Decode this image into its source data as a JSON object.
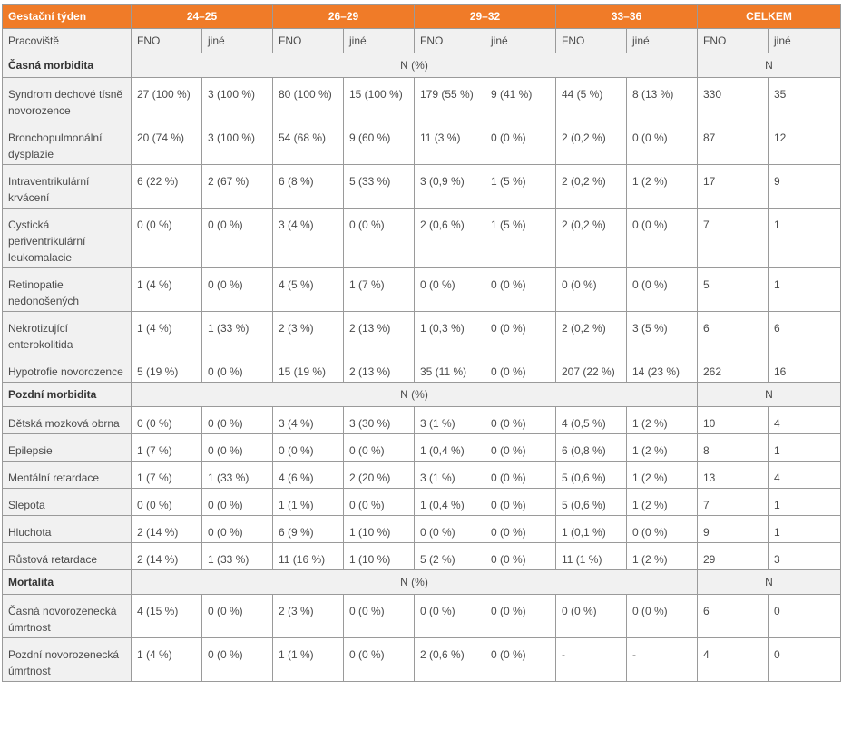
{
  "header": {
    "first": "Gestační týden",
    "groups": [
      "24–25",
      "26–29",
      "29–32",
      "33–36",
      "CELKEM"
    ]
  },
  "subheader": {
    "label": "Pracoviště",
    "cols": [
      "FNO",
      "jiné",
      "FNO",
      "jiné",
      "FNO",
      "jiné",
      "FNO",
      "jiné",
      "FNO",
      "jiné"
    ]
  },
  "sections": [
    {
      "title": "Časná morbidita",
      "unit_left": "N (%)",
      "unit_right": "N",
      "rows": [
        {
          "label": "Syndrom dechové tísně novorozence",
          "cells": [
            "27 (100 %)",
            "3 (100 %)",
            "80 (100 %)",
            "15 (100 %)",
            "179 (55 %)",
            "9 (41 %)",
            "44 (5 %)",
            "8 (13 %)",
            "330",
            "35"
          ]
        },
        {
          "label": "Bronchopulmonální dysplazie",
          "cells": [
            "20 (74 %)",
            "3 (100 %)",
            "54 (68 %)",
            "9 (60 %)",
            "11 (3 %)",
            "0 (0 %)",
            "2 (0,2 %)",
            "0 (0 %)",
            "87",
            "12"
          ]
        },
        {
          "label": "Intraventrikulární krvácení",
          "cells": [
            "6 (22 %)",
            "2 (67 %)",
            "6 (8 %)",
            "5 (33 %)",
            "3 (0,9 %)",
            "1 (5 %)",
            "2 (0,2 %)",
            "1 (2 %)",
            "17",
            "9"
          ]
        },
        {
          "label": "Cystická periventrikulární leukomalacie",
          "cells": [
            "0 (0 %)",
            "0 (0 %)",
            "3 (4 %)",
            "0 (0 %)",
            "2 (0,6 %)",
            "1 (5 %)",
            "2 (0,2 %)",
            "0 (0 %)",
            "7",
            "1"
          ]
        },
        {
          "label": "Retinopatie nedonošených",
          "cells": [
            "1 (4 %)",
            "0 (0 %)",
            "4 (5 %)",
            "1 (7 %)",
            "0 (0 %)",
            "0 (0 %)",
            "0 (0 %)",
            "0 (0 %)",
            "5",
            "1"
          ]
        },
        {
          "label": "Nekrotizující enterokolitida",
          "cells": [
            "1 (4 %)",
            "1 (33 %)",
            "2 (3 %)",
            "2 (13 %)",
            "1 (0,3 %)",
            "0 (0 %)",
            "2 (0,2 %)",
            "3 (5 %)",
            "6",
            "6"
          ]
        },
        {
          "label": "Hypotrofie novorozence",
          "cells": [
            "5 (19 %)",
            "0 (0 %)",
            "15 (19 %)",
            "2 (13 %)",
            "35 (11 %)",
            "0 (0 %)",
            "207 (22 %)",
            "14 (23 %)",
            "262",
            "16"
          ]
        }
      ]
    },
    {
      "title": "Pozdní morbidita",
      "unit_left": "N (%)",
      "unit_right": "N",
      "rows": [
        {
          "label": "Dětská mozková obrna",
          "cells": [
            "0 (0 %)",
            "0 (0 %)",
            "3 (4 %)",
            "3 (30 %)",
            "3 (1 %)",
            "0 (0 %)",
            "4 (0,5 %)",
            "1 (2 %)",
            "10",
            "4"
          ]
        },
        {
          "label": "Epilepsie",
          "cells": [
            "1 (7 %)",
            "0 (0 %)",
            "0 (0 %)",
            "0 (0 %)",
            "1 (0,4 %)",
            "0 (0 %)",
            "6 (0,8 %)",
            "1 (2 %)",
            "8",
            "1"
          ]
        },
        {
          "label": "Mentální retardace",
          "cells": [
            "1 (7 %)",
            "1 (33 %)",
            "4 (6 %)",
            "2 (20 %)",
            "3 (1 %)",
            "0 (0 %)",
            "5 (0,6 %)",
            "1 (2 %)",
            "13",
            "4"
          ]
        },
        {
          "label": "Slepota",
          "cells": [
            "0 (0 %)",
            "0 (0 %)",
            "1 (1 %)",
            "0 (0 %)",
            "1 (0,4 %)",
            "0 (0 %)",
            "5 (0,6 %)",
            "1 (2 %)",
            "7",
            "1"
          ]
        },
        {
          "label": "Hluchota",
          "cells": [
            "2 (14 %)",
            "0 (0 %)",
            "6 (9 %)",
            "1 (10 %)",
            "0 (0 %)",
            "0 (0 %)",
            "1 (0,1 %)",
            "0 (0 %)",
            "9",
            "1"
          ]
        },
        {
          "label": "Růstová retardace",
          "cells": [
            "2 (14 %)",
            "1 (33 %)",
            "11 (16 %)",
            "1 (10 %)",
            "5 (2 %)",
            "0 (0 %)",
            "11 (1 %)",
            "1 (2 %)",
            "29",
            "3"
          ]
        }
      ]
    },
    {
      "title": "Mortalita",
      "unit_left": "N (%)",
      "unit_right": "N",
      "rows": [
        {
          "label": "Časná novorozenecká úmrtnost",
          "cells": [
            "4 (15 %)",
            "0 (0 %)",
            "2 (3 %)",
            "0 (0 %)",
            "0 (0 %)",
            "0 (0 %)",
            "0 (0 %)",
            "0 (0 %)",
            "6",
            "0"
          ]
        },
        {
          "label": "Pozdní novorozenecká úmrtnost",
          "cells": [
            "1 (4 %)",
            "0 (0 %)",
            "1 (1 %)",
            "0 (0 %)",
            "2 (0,6 %)",
            "0 (0 %)",
            "-",
            "-",
            "4",
            "0"
          ]
        }
      ]
    }
  ],
  "colors": {
    "header_bg": "#f07b28",
    "label_bg": "#f1f1f1",
    "border": "#9a9a9a"
  }
}
